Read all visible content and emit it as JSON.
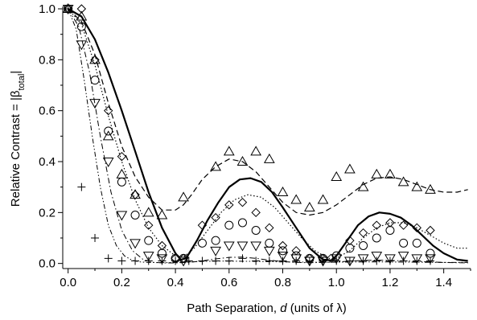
{
  "chart_data": {
    "type": "line",
    "xlim": [
      -0.02,
      1.5
    ],
    "ylim": [
      -0.02,
      1.0
    ],
    "x_ticks": [
      0.0,
      0.2,
      0.4,
      0.6,
      0.8,
      1.0,
      1.2,
      1.4
    ],
    "x_tick_labels": [
      "0.0",
      "0.2",
      "0.4",
      "0.6",
      "0.8",
      "1.0",
      "1.2",
      "1.4"
    ],
    "y_ticks": [
      0.0,
      0.2,
      0.4,
      0.6,
      0.8,
      1.0
    ],
    "y_tick_labels": [
      "0.0",
      "0.2",
      "0.4",
      "0.6",
      "0.8",
      "1.0"
    ],
    "xlabel": {
      "pre": "Path Separation, ",
      "var": "d",
      "post": " (units of λ)"
    },
    "ylabel": {
      "pre": "Relative Contrast = |β",
      "sub": "total",
      "post": "|"
    },
    "grid": false,
    "legend": "none",
    "lines": [
      {
        "style": "solid",
        "stroke_width": 2.2,
        "color": "#000000",
        "x": [
          0,
          0.05,
          0.1,
          0.15,
          0.2,
          0.25,
          0.3,
          0.35,
          0.4,
          0.42,
          0.44,
          0.48,
          0.52,
          0.56,
          0.6,
          0.64,
          0.68,
          0.72,
          0.76,
          0.8,
          0.85,
          0.9,
          0.95,
          0.98,
          1.0,
          1.04,
          1.08,
          1.12,
          1.16,
          1.2,
          1.24,
          1.28,
          1.32,
          1.36,
          1.4,
          1.45,
          1.49
        ],
        "y": [
          1.0,
          0.97,
          0.88,
          0.75,
          0.6,
          0.44,
          0.28,
          0.14,
          0.04,
          0.015,
          0.02,
          0.09,
          0.17,
          0.24,
          0.3,
          0.33,
          0.335,
          0.32,
          0.28,
          0.22,
          0.14,
          0.06,
          0.015,
          0.012,
          0.03,
          0.09,
          0.15,
          0.185,
          0.2,
          0.195,
          0.18,
          0.15,
          0.11,
          0.07,
          0.04,
          0.015,
          0.01
        ]
      },
      {
        "style": "dashed",
        "stroke_width": 1.2,
        "color": "#000000",
        "x": [
          0,
          0.05,
          0.1,
          0.15,
          0.2,
          0.25,
          0.3,
          0.35,
          0.4,
          0.43,
          0.46,
          0.5,
          0.55,
          0.6,
          0.65,
          0.7,
          0.75,
          0.8,
          0.85,
          0.9,
          0.95,
          1.0,
          1.05,
          1.1,
          1.15,
          1.2,
          1.25,
          1.3,
          1.35,
          1.4,
          1.45,
          1.49
        ],
        "y": [
          1.0,
          0.95,
          0.82,
          0.63,
          0.46,
          0.34,
          0.26,
          0.21,
          0.21,
          0.23,
          0.27,
          0.33,
          0.38,
          0.41,
          0.4,
          0.36,
          0.3,
          0.24,
          0.2,
          0.19,
          0.2,
          0.23,
          0.27,
          0.31,
          0.335,
          0.34,
          0.33,
          0.31,
          0.29,
          0.28,
          0.28,
          0.29
        ]
      },
      {
        "style": "dotted",
        "stroke_width": 1.2,
        "color": "#000000",
        "x": [
          0,
          0.05,
          0.1,
          0.15,
          0.2,
          0.25,
          0.3,
          0.35,
          0.4,
          0.43,
          0.47,
          0.52,
          0.57,
          0.62,
          0.67,
          0.72,
          0.77,
          0.82,
          0.87,
          0.92,
          0.97,
          1.0,
          1.05,
          1.1,
          1.15,
          1.2,
          1.25,
          1.3,
          1.35,
          1.4,
          1.45,
          1.49
        ],
        "y": [
          1.0,
          0.94,
          0.78,
          0.58,
          0.4,
          0.25,
          0.14,
          0.07,
          0.03,
          0.025,
          0.06,
          0.13,
          0.2,
          0.25,
          0.27,
          0.26,
          0.22,
          0.16,
          0.1,
          0.05,
          0.02,
          0.02,
          0.05,
          0.1,
          0.14,
          0.16,
          0.16,
          0.14,
          0.11,
          0.08,
          0.06,
          0.06
        ]
      },
      {
        "style": "dash-dot",
        "stroke_width": 1.0,
        "color": "#000000",
        "x": [
          0,
          0.04,
          0.08,
          0.12,
          0.16,
          0.2,
          0.24,
          0.28,
          0.32,
          0.36,
          0.4,
          0.45,
          0.5,
          0.55,
          0.6,
          0.65,
          0.7,
          0.75,
          0.8,
          0.85,
          0.9,
          0.95,
          1.0,
          1.05,
          1.1,
          1.15,
          1.2,
          1.25,
          1.3,
          1.35,
          1.4,
          1.45,
          1.49
        ],
        "y": [
          1.0,
          0.93,
          0.75,
          0.5,
          0.28,
          0.13,
          0.05,
          0.015,
          0.004,
          0.002,
          0.002,
          0.004,
          0.01,
          0.018,
          0.024,
          0.025,
          0.02,
          0.013,
          0.007,
          0.004,
          0.003,
          0.004,
          0.006,
          0.009,
          0.012,
          0.013,
          0.012,
          0.01,
          0.008,
          0.006,
          0.004,
          0.003,
          0.002
        ]
      },
      {
        "style": "dash-dot-dot",
        "stroke_width": 1.0,
        "color": "#000000",
        "x": [
          0,
          0.03,
          0.06,
          0.09,
          0.12,
          0.15,
          0.18,
          0.21,
          0.24,
          0.27,
          0.3,
          0.35,
          0.4,
          0.45,
          0.5,
          0.55,
          0.6,
          0.7,
          0.8,
          0.9,
          1.0,
          1.1,
          1.2,
          1.3,
          1.4,
          1.49
        ],
        "y": [
          1.0,
          0.92,
          0.72,
          0.5,
          0.3,
          0.15,
          0.07,
          0.03,
          0.012,
          0.006,
          0.004,
          0.003,
          0.004,
          0.006,
          0.008,
          0.009,
          0.009,
          0.008,
          0.006,
          0.005,
          0.005,
          0.006,
          0.006,
          0.005,
          0.004,
          0.004
        ]
      }
    ],
    "markers": [
      {
        "shape": "diamond",
        "x": [
          0.0,
          0.05,
          0.1,
          0.15,
          0.2,
          0.25,
          0.3,
          0.35,
          0.4,
          0.43,
          0.5,
          0.55,
          0.6,
          0.65,
          0.7,
          0.75,
          0.8,
          0.85,
          0.9,
          0.95,
          0.98,
          1.05,
          1.1,
          1.15,
          1.2,
          1.25,
          1.3,
          1.35
        ],
        "y": [
          1.0,
          1.0,
          0.8,
          0.6,
          0.42,
          0.27,
          0.15,
          0.07,
          0.02,
          0.02,
          0.15,
          0.18,
          0.23,
          0.24,
          0.2,
          0.14,
          0.07,
          0.05,
          0.02,
          0.02,
          0.02,
          0.09,
          0.12,
          0.15,
          0.16,
          0.15,
          0.14,
          0.13
        ]
      },
      {
        "shape": "triangle-up",
        "x": [
          0.0,
          0.05,
          0.1,
          0.15,
          0.2,
          0.25,
          0.3,
          0.35,
          0.43,
          0.55,
          0.6,
          0.65,
          0.7,
          0.75,
          0.8,
          0.85,
          0.9,
          0.95,
          1.0,
          1.05,
          1.1,
          1.15,
          1.2,
          1.25,
          1.3,
          1.35
        ],
        "y": [
          1.0,
          0.97,
          0.8,
          0.5,
          0.35,
          0.27,
          0.2,
          0.19,
          0.26,
          0.38,
          0.44,
          0.4,
          0.44,
          0.41,
          0.28,
          0.25,
          0.22,
          0.25,
          0.34,
          0.37,
          0.3,
          0.35,
          0.35,
          0.32,
          0.3,
          0.29
        ]
      },
      {
        "shape": "circle",
        "x": [
          0.0,
          0.05,
          0.1,
          0.15,
          0.2,
          0.25,
          0.3,
          0.35,
          0.4,
          0.43,
          0.5,
          0.55,
          0.6,
          0.65,
          0.7,
          0.75,
          0.8,
          0.85,
          0.9,
          0.95,
          1.0,
          1.05,
          1.1,
          1.15,
          1.2,
          1.25,
          1.3,
          1.35
        ],
        "y": [
          1.0,
          0.93,
          0.72,
          0.52,
          0.32,
          0.19,
          0.09,
          0.04,
          0.02,
          0.02,
          0.08,
          0.09,
          0.15,
          0.16,
          0.13,
          0.08,
          0.05,
          0.03,
          0.02,
          0.02,
          0.03,
          0.06,
          0.07,
          0.1,
          0.13,
          0.08,
          0.08,
          0.04
        ]
      },
      {
        "shape": "triangle-down",
        "x": [
          0.0,
          0.05,
          0.1,
          0.15,
          0.2,
          0.25,
          0.3,
          0.35,
          0.43,
          0.55,
          0.6,
          0.65,
          0.7,
          0.75,
          0.8,
          0.85,
          0.9,
          0.95,
          1.0,
          1.05,
          1.1,
          1.15,
          1.2,
          1.25,
          1.3,
          1.35
        ],
        "y": [
          1.0,
          0.86,
          0.63,
          0.4,
          0.19,
          0.08,
          0.03,
          0.02,
          0.01,
          0.05,
          0.07,
          0.07,
          0.07,
          0.05,
          0.03,
          0.02,
          0.01,
          0.01,
          0.02,
          0.01,
          0.02,
          0.03,
          0.02,
          0.03,
          0.02,
          0.02
        ]
      },
      {
        "shape": "plus",
        "x": [
          0.0,
          0.05,
          0.1,
          0.15,
          0.2,
          0.25,
          0.3,
          0.35,
          0.4,
          0.45,
          0.5,
          0.55,
          0.6,
          0.65,
          0.7,
          0.75,
          0.8,
          0.85,
          0.9,
          0.95,
          1.0,
          1.05,
          1.1,
          1.15,
          1.2,
          1.25,
          1.3,
          1.35
        ],
        "y": [
          1.0,
          0.3,
          0.1,
          0.02,
          0.01,
          0.01,
          0.01,
          0.01,
          0.01,
          0.01,
          0.01,
          0.01,
          0.01,
          0.02,
          0.01,
          0.01,
          0.01,
          0.01,
          0.01,
          0.01,
          0.01,
          0.01,
          0.01,
          0.01,
          0.01,
          0.01,
          0.01,
          0.01
        ]
      }
    ]
  }
}
